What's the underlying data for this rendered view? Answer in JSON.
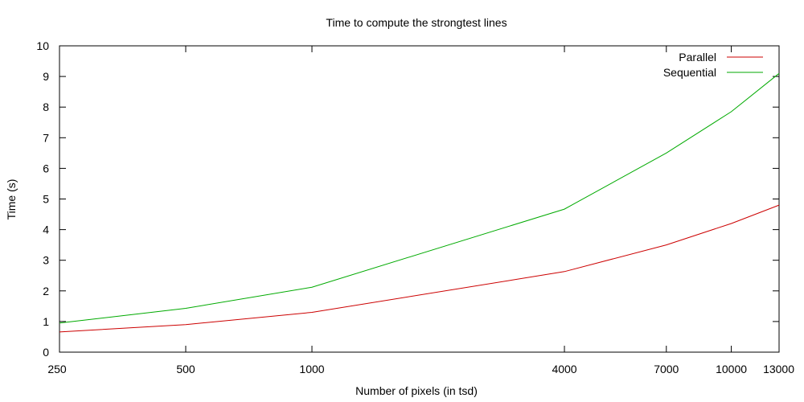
{
  "chart_data": {
    "type": "line",
    "title": "Time to compute the strongtest lines",
    "xlabel": "Number of pixels (in tsd)",
    "ylabel": "Time (s)",
    "x": [
      250,
      500,
      1000,
      4000,
      7000,
      10000,
      13000
    ],
    "x_ticks": [
      "250",
      "500",
      "1000",
      "4000",
      "7000",
      "10000",
      "13000"
    ],
    "ylim": [
      0,
      10
    ],
    "y_ticks": [
      "0",
      "1",
      "2",
      "3",
      "4",
      "5",
      "6",
      "7",
      "8",
      "9",
      "10"
    ],
    "grid": false,
    "legend_position": "top-right",
    "series": [
      {
        "name": "Parallel",
        "color": "#cc0000",
        "values": [
          0.66,
          0.9,
          1.3,
          2.63,
          3.5,
          4.2,
          4.8
        ]
      },
      {
        "name": "Sequential",
        "color": "#00aa00",
        "values": [
          0.95,
          1.43,
          2.12,
          4.67,
          6.5,
          7.85,
          9.1
        ]
      }
    ]
  }
}
